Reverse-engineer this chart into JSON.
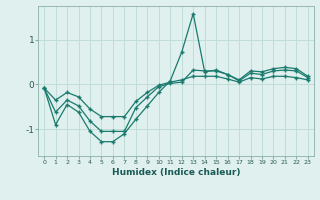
{
  "xlabel": "Humidex (Indice chaleur)",
  "bg_color": "#dff0ee",
  "grid_color": "#c0ddd8",
  "line_color": "#1a7a6e",
  "xlim": [
    -0.5,
    23.5
  ],
  "ylim": [
    -1.6,
    1.75
  ],
  "yticks": [
    -1,
    0,
    1
  ],
  "xticks": [
    0,
    1,
    2,
    3,
    4,
    5,
    6,
    7,
    8,
    9,
    10,
    11,
    12,
    13,
    14,
    15,
    16,
    17,
    18,
    19,
    20,
    21,
    22,
    23
  ],
  "series1_x": [
    0,
    1,
    2,
    3,
    4,
    5,
    6,
    7,
    8,
    9,
    10,
    11,
    12,
    13,
    14,
    15,
    16,
    17,
    18,
    19,
    20,
    21,
    22,
    23
  ],
  "series1_y": [
    -0.08,
    -0.9,
    -0.45,
    -0.62,
    -1.05,
    -1.28,
    -1.28,
    -1.1,
    -0.78,
    -0.48,
    -0.18,
    0.08,
    0.72,
    1.58,
    0.28,
    0.32,
    0.22,
    0.1,
    0.3,
    0.28,
    0.35,
    0.38,
    0.35,
    0.18
  ],
  "series2_x": [
    0,
    1,
    2,
    3,
    4,
    5,
    6,
    7,
    8,
    9,
    10,
    11,
    12,
    13,
    14,
    15,
    16,
    17,
    18,
    19,
    20,
    21,
    22,
    23
  ],
  "series2_y": [
    -0.08,
    -0.62,
    -0.35,
    -0.48,
    -0.82,
    -1.05,
    -1.05,
    -1.05,
    -0.52,
    -0.28,
    -0.05,
    0.02,
    0.05,
    0.32,
    0.3,
    0.3,
    0.22,
    0.08,
    0.25,
    0.22,
    0.3,
    0.32,
    0.3,
    0.15
  ],
  "series3_x": [
    0,
    1,
    2,
    3,
    4,
    5,
    6,
    7,
    8,
    9,
    10,
    11,
    12,
    13,
    14,
    15,
    16,
    17,
    18,
    19,
    20,
    21,
    22,
    23
  ],
  "series3_y": [
    -0.08,
    -0.35,
    -0.18,
    -0.28,
    -0.55,
    -0.72,
    -0.72,
    -0.72,
    -0.38,
    -0.18,
    -0.02,
    0.05,
    0.1,
    0.18,
    0.18,
    0.18,
    0.12,
    0.05,
    0.15,
    0.12,
    0.18,
    0.18,
    0.15,
    0.1
  ]
}
